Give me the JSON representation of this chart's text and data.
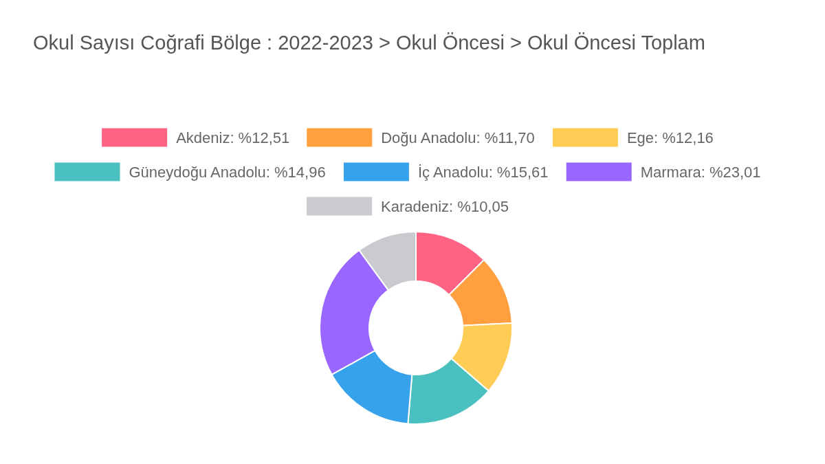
{
  "chart_data": {
    "type": "donut",
    "title": "Okul Sayısı Coğrafi Bölge : 2022-2023 > Okul Öncesi > Okul Öncesi Toplam",
    "categories": [
      "Akdeniz: %12,51",
      "Doğu Anadolu: %11,70",
      "Ege: %12,16",
      "Güneydoğu Anadolu: %14,96",
      "İç Anadolu: %15,61",
      "Marmara: %23,01",
      "Karadeniz: %10,05"
    ],
    "values": [
      12.51,
      11.7,
      12.16,
      14.96,
      15.61,
      23.01,
      10.05
    ],
    "colors": [
      "#ff6384",
      "#ff9f40",
      "#ffcd56",
      "#4bc0c0",
      "#36a2eb",
      "#9966ff",
      "#c9cbcf"
    ],
    "legend": "top"
  }
}
